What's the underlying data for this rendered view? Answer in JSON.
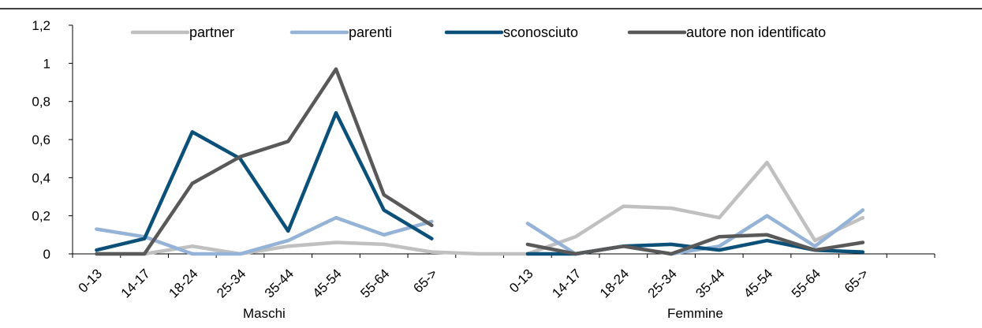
{
  "chart_data": {
    "type": "line",
    "title": "",
    "xlabel": "",
    "ylabel": "",
    "ylim": [
      0,
      1.2
    ],
    "yticks": [
      "0",
      "0,2",
      "0,4",
      "0,6",
      "0,8",
      "1",
      "1,2"
    ],
    "groups": [
      {
        "label": "Maschi",
        "categories": [
          "0-13",
          "14-17",
          "18-24",
          "25-34",
          "35-44",
          "45-54",
          "55-64",
          "65->"
        ]
      },
      {
        "label": "Femmine",
        "categories": [
          "0-13",
          "14-17",
          "18-24",
          "25-34",
          "35-44",
          "45-54",
          "55-64",
          "65->"
        ]
      }
    ],
    "legend_position": "top",
    "series": [
      {
        "name": "partner",
        "color": "#c0c0c0",
        "values": [
          0,
          0,
          0.04,
          0,
          0.04,
          0.06,
          0.05,
          0.01,
          0,
          0,
          0.09,
          0.25,
          0.24,
          0.19,
          0.48,
          0.07,
          0.19
        ]
      },
      {
        "name": "parenti",
        "color": "#95b3d7",
        "values": [
          0.13,
          0.09,
          0,
          0,
          0.07,
          0.19,
          0.1,
          0.17,
          null,
          0.16,
          0,
          0.04,
          0,
          0.04,
          0.2,
          0.04,
          0.23
        ]
      },
      {
        "name": "sconosciuto",
        "color": "#0a5078",
        "values": [
          0.02,
          0.08,
          0.64,
          0.5,
          0.12,
          0.74,
          0.23,
          0.08,
          null,
          0,
          0,
          0.04,
          0.05,
          0.02,
          0.07,
          0.02,
          0.01
        ]
      },
      {
        "name": "autore non identificato",
        "color": "#595959",
        "values": [
          0,
          0,
          0.37,
          0.51,
          0.59,
          0.97,
          0.31,
          0.15,
          null,
          0.05,
          0,
          0.04,
          0,
          0.09,
          0.1,
          0.02,
          0.06
        ]
      }
    ]
  }
}
